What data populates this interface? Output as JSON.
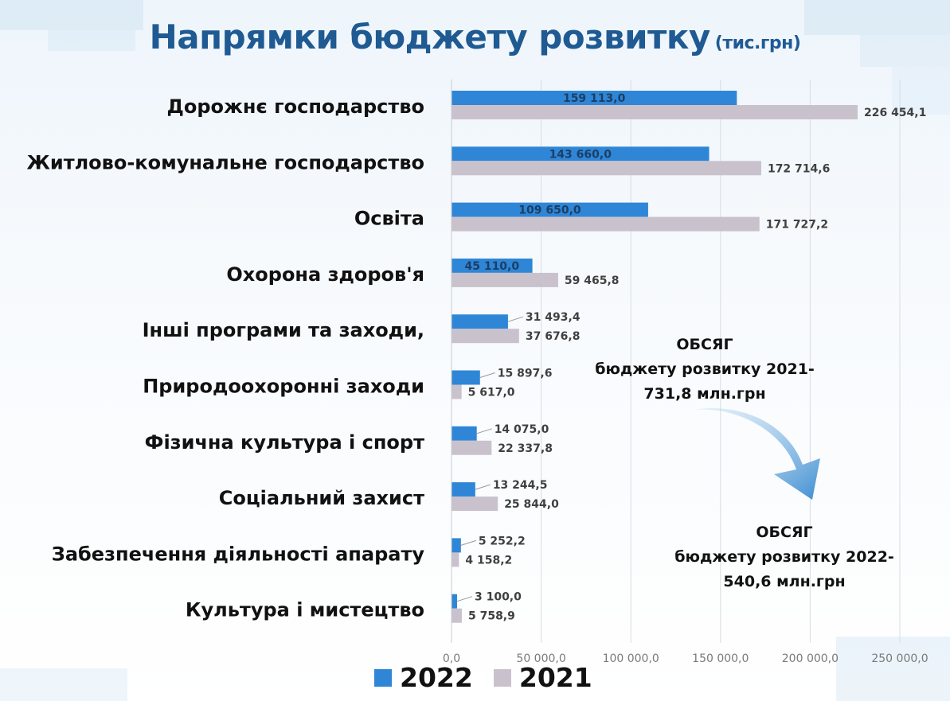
{
  "title": "Напрямки бюджету розвитку",
  "title_unit": "(тис.грн)",
  "colors": {
    "series_2022": "#2f86d6",
    "series_2021": "#c9c2cd",
    "title": "#1f5a93"
  },
  "chart_data": {
    "type": "bar",
    "orientation": "horizontal",
    "categories": [
      "Дорожнє господарство",
      "Житлово-комунальне господарство",
      "Освіта",
      "Охорона здоров'я",
      "Інші програми та заходи,",
      "Природоохоронні заходи",
      "Фізична культура і спорт",
      "Соціальний захист",
      "Забезпечення діяльності апарату",
      "Культура і мистецтво"
    ],
    "series": [
      {
        "name": "2022",
        "values": [
          159113.0,
          143660.0,
          109650.0,
          45110.0,
          31493.4,
          15897.6,
          14075.0,
          13244.5,
          5252.2,
          3100.0
        ],
        "labels": [
          "159 113,0",
          "143 660,0",
          "109 650,0",
          "45 110,0",
          "31 493,4",
          "15 897,6",
          "14 075,0",
          "13 244,5",
          "5 252,2",
          "3 100,0"
        ]
      },
      {
        "name": "2021",
        "values": [
          226454.1,
          172714.6,
          171727.2,
          59465.8,
          37676.8,
          5617.0,
          22337.8,
          25844.0,
          4158.2,
          5758.9
        ],
        "labels": [
          "226 454,1",
          "172 714,6",
          "171 727,2",
          "59 465,8",
          "37 676,8",
          "5 617,0",
          "22 337,8",
          "25 844,0",
          "4 158,2",
          "5 758,9"
        ]
      }
    ],
    "xlim": [
      0,
      250000
    ],
    "x_ticks": [
      0,
      50000,
      100000,
      150000,
      200000,
      250000
    ],
    "x_tick_labels": [
      "0,0",
      "50 000,0",
      "100 000,0",
      "150 000,0",
      "200 000,0",
      "250 000,0"
    ],
    "grid": true,
    "legend_position": "bottom"
  },
  "legend": [
    {
      "label": "2022"
    },
    {
      "label": "2021"
    }
  ],
  "notes": {
    "note_2021": [
      "ОБСЯГ",
      "бюджету розвитку 2021-",
      "731,8 млн.грн"
    ],
    "note_2022": [
      "ОБСЯГ",
      "бюджету розвитку 2022-",
      "540,6 млн.грн"
    ]
  }
}
